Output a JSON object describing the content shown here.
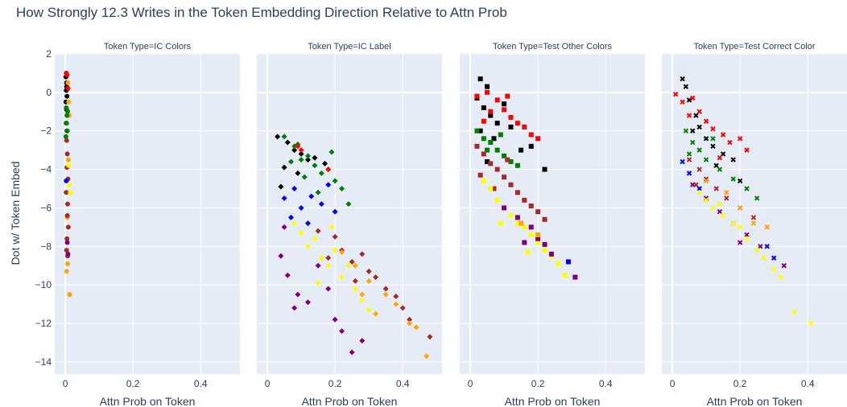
{
  "title": "How Strongly 12.3 Writes in the Token Embedding Direction Relative to Attn Prob",
  "ylabel": "Dot w/ Token Embed",
  "ylim": [
    -14.63,
    2.04
  ],
  "yticks": [
    2,
    0,
    {
      "value": -2,
      "label": "−2"
    },
    {
      "value": -4,
      "label": "−4"
    },
    {
      "value": -6,
      "label": "−6"
    },
    {
      "value": -8,
      "label": "−8"
    },
    {
      "value": -10,
      "label": "−10"
    },
    {
      "value": -12,
      "label": "−12"
    },
    {
      "value": -14,
      "label": "−14"
    }
  ],
  "chart_data": [
    {
      "type": "scatter",
      "title": "Token Type=IC Colors",
      "xlabel": "Attn Prob on Token",
      "xlim": [
        -0.031,
        0.516
      ],
      "xticks": [
        0,
        0.2,
        0.4
      ],
      "marker": "circle",
      "series": [
        {
          "color": "#000000",
          "x": [
            0.002,
            0.004,
            0.003,
            0.005,
            0.002,
            0.004,
            0.006,
            0.003,
            0.005,
            0.004
          ],
          "values": [
            0.8,
            0.5,
            0.1,
            -0.2,
            -0.5,
            -0.9,
            -1.2,
            -1.6,
            -2.0,
            0.3
          ]
        },
        {
          "color": "#ff0000",
          "x": [
            0.003,
            0.005,
            0.008
          ],
          "values": [
            1.0,
            0.9,
            0.2
          ]
        },
        {
          "color": "#ffa500",
          "x": [
            0.008,
            0.01,
            0.012,
            0.009,
            0.006,
            0.007,
            0.004,
            0.013
          ],
          "values": [
            0.5,
            -0.5,
            -1.2,
            -3.5,
            -6.5,
            -8.9,
            -9.3,
            -10.5
          ]
        },
        {
          "color": "#008000",
          "x": [
            0.003,
            0.005,
            0.004,
            0.006,
            0.002,
            0.007
          ],
          "values": [
            -0.8,
            -1.2,
            -1.6,
            -2.0,
            -2.3,
            -1.0
          ]
        },
        {
          "color": "#a52a2a",
          "x": [
            0.004,
            0.006,
            0.005,
            0.008,
            0.003,
            0.007,
            0.006,
            0.009,
            0.005,
            0.004,
            0.007
          ],
          "values": [
            -2.5,
            -3.2,
            -3.9,
            -4.5,
            -5.2,
            -5.8,
            -6.4,
            -7.0,
            -7.6,
            -8.2,
            -8.5
          ]
        },
        {
          "color": "#ffff00",
          "x": [
            0.012,
            0.015,
            0.01
          ],
          "values": [
            -4.8,
            -5.2,
            -3.8
          ]
        },
        {
          "color": "#0000ff",
          "x": [
            0.003
          ],
          "values": [
            -4.6
          ]
        },
        {
          "color": "#800080",
          "x": [
            0.006,
            0.008
          ],
          "values": [
            -7.8,
            -8.4
          ]
        }
      ]
    },
    {
      "type": "scatter",
      "title": "Token Type=IC Label",
      "xlabel": "Attn Prob on Token",
      "xlim": [
        -0.031,
        0.516
      ],
      "xticks": [
        0,
        0.2,
        0.4
      ],
      "marker": "diamond",
      "series": [
        {
          "color": "#000000",
          "x": [
            0.03,
            0.06,
            0.08,
            0.1,
            0.12,
            0.05,
            0.14,
            0.09,
            0.17,
            0.04
          ],
          "values": [
            -2.3,
            -2.6,
            -3.0,
            -3.2,
            -3.5,
            -3.9,
            -3.4,
            -4.2,
            -3.7,
            -4.9
          ]
        },
        {
          "color": "#008000",
          "x": [
            0.05,
            0.08,
            0.1,
            0.12,
            0.14,
            0.16,
            0.18,
            0.2,
            0.22,
            0.24,
            0.11,
            0.07,
            0.19,
            0.09,
            0.15
          ],
          "values": [
            -2.3,
            -2.8,
            -3.5,
            -3.3,
            -3.8,
            -4.2,
            -4.0,
            -4.6,
            -5.0,
            -5.8,
            -4.4,
            -3.6,
            -3.1,
            -2.7,
            -5.2
          ]
        },
        {
          "color": "#0000ff",
          "x": [
            0.05,
            0.08,
            0.1,
            0.13,
            0.16,
            0.18,
            0.07,
            0.12,
            0.2
          ],
          "values": [
            -5.5,
            -5.0,
            -6.0,
            -5.4,
            -5.8,
            -4.8,
            -6.5,
            -6.8,
            -6.2
          ]
        },
        {
          "color": "#ffff00",
          "x": [
            0.08,
            0.1,
            0.12,
            0.14,
            0.16,
            0.18,
            0.2,
            0.22,
            0.24,
            0.26,
            0.28,
            0.3,
            0.15,
            0.19
          ],
          "values": [
            -6.8,
            -7.3,
            -8.0,
            -7.6,
            -8.6,
            -9.0,
            -8.2,
            -9.6,
            -9.0,
            -10.2,
            -10.8,
            -11.3,
            -9.9,
            -7.0
          ]
        },
        {
          "color": "#a52a2a",
          "x": [
            0.15,
            0.2,
            0.22,
            0.25,
            0.28,
            0.3,
            0.32,
            0.35,
            0.38,
            0.4,
            0.42,
            0.48,
            0.26,
            0.18
          ],
          "values": [
            -7.2,
            -7.5,
            -8.2,
            -8.8,
            -8.4,
            -9.3,
            -9.6,
            -10.2,
            -10.6,
            -11.2,
            -11.8,
            -12.7,
            -9.8,
            -8.6
          ]
        },
        {
          "color": "#800080",
          "x": [
            0.04,
            0.06,
            0.09,
            0.12,
            0.15,
            0.2,
            0.22,
            0.25,
            0.28,
            0.05,
            0.18,
            0.08
          ],
          "values": [
            -8.5,
            -9.5,
            -10.5,
            -10.9,
            -9.0,
            -11.8,
            -12.4,
            -13.5,
            -12.9,
            -7.0,
            -10.2,
            -11.2
          ]
        },
        {
          "color": "#ffa500",
          "x": [
            0.22,
            0.26,
            0.3,
            0.35,
            0.38,
            0.42,
            0.44,
            0.47,
            0.32,
            0.28
          ],
          "values": [
            -8.3,
            -9.0,
            -9.8,
            -10.5,
            -11.0,
            -12.0,
            -12.2,
            -13.7,
            -11.5,
            -10.5
          ]
        },
        {
          "color": "#ff0000",
          "x": [
            0.1,
            0.09,
            0.18
          ],
          "values": [
            -3.0,
            -2.8,
            -4.0
          ]
        }
      ]
    },
    {
      "type": "scatter",
      "title": "Token Type=Test Other Colors",
      "xlabel": "Attn Prob on Token",
      "xlim": [
        -0.031,
        0.516
      ],
      "xticks": [
        0,
        0.2,
        0.4
      ],
      "marker": "square",
      "series": [
        {
          "color": "#000000",
          "x": [
            0.03,
            0.05,
            0.02,
            0.04,
            0.06,
            0.08,
            0.1,
            0.03,
            0.07,
            0.12,
            0.15,
            0.22,
            0.18,
            0.05
          ],
          "values": [
            0.7,
            0.3,
            -0.3,
            -0.8,
            -1.2,
            -1.6,
            -0.6,
            -2.0,
            -2.4,
            -1.8,
            -3.0,
            -4.0,
            -2.8,
            -3.6
          ]
        },
        {
          "color": "#ff0000",
          "x": [
            0.02,
            0.05,
            0.08,
            0.1,
            0.12,
            0.14,
            0.16,
            0.18,
            0.2,
            0.06,
            0.11,
            0.04
          ],
          "values": [
            -0.2,
            0.0,
            -0.4,
            -0.9,
            -1.3,
            -1.6,
            -1.8,
            -2.2,
            -2.4,
            -1.0,
            -0.2,
            -1.5
          ]
        },
        {
          "color": "#008000",
          "x": [
            0.02,
            0.04,
            0.06,
            0.08,
            0.1,
            0.12,
            0.14,
            0.05,
            0.09
          ],
          "values": [
            -2.0,
            -2.4,
            -2.6,
            -3.0,
            -3.3,
            -3.6,
            -3.8,
            -3.0,
            -2.2
          ]
        },
        {
          "color": "#a52a2a",
          "x": [
            0.02,
            0.04,
            0.06,
            0.08,
            0.1,
            0.12,
            0.14,
            0.16,
            0.18,
            0.2,
            0.22,
            0.03,
            0.07,
            0.11
          ],
          "values": [
            -2.8,
            -3.2,
            -3.7,
            -4.0,
            -4.4,
            -4.8,
            -5.2,
            -5.6,
            -5.9,
            -6.2,
            -6.6,
            -4.3,
            -5.0,
            -3.5
          ]
        },
        {
          "color": "#ffff00",
          "x": [
            0.04,
            0.06,
            0.08,
            0.1,
            0.12,
            0.14,
            0.16,
            0.18,
            0.2,
            0.22,
            0.24,
            0.26,
            0.28,
            0.09,
            0.17
          ],
          "values": [
            -4.6,
            -5.0,
            -5.6,
            -6.0,
            -6.4,
            -6.8,
            -7.0,
            -7.4,
            -7.8,
            -8.2,
            -8.5,
            -8.9,
            -9.5,
            -6.8,
            -8.3
          ]
        },
        {
          "color": "#800080",
          "x": [
            0.1,
            0.14,
            0.18,
            0.2,
            0.22,
            0.24,
            0.31,
            0.16
          ],
          "values": [
            -6.0,
            -6.5,
            -7.0,
            -7.6,
            -7.9,
            -8.4,
            -9.6,
            -7.8
          ]
        },
        {
          "color": "#0000ff",
          "x": [
            0.29
          ],
          "values": [
            -8.8
          ]
        },
        {
          "color": "#ffa500",
          "x": [
            0.15,
            0.2
          ],
          "values": [
            -6.8,
            -7.4
          ]
        }
      ]
    },
    {
      "type": "scatter",
      "title": "Token Type=Test Correct Color",
      "xlabel": "Attn Prob on Token",
      "xlim": [
        -0.031,
        0.516
      ],
      "xticks": [
        0,
        0.2,
        0.4
      ],
      "marker": "x",
      "series": [
        {
          "color": "#000000",
          "x": [
            0.03,
            0.04,
            0.05,
            0.07,
            0.08,
            0.1,
            0.12,
            0.15,
            0.18,
            0.2,
            0.06,
            0.13
          ],
          "values": [
            0.7,
            0.3,
            -0.4,
            -1.2,
            -1.8,
            -2.4,
            -2.8,
            -3.2,
            -3.5,
            -4.6,
            -2.0,
            -3.8
          ]
        },
        {
          "color": "#ff0000",
          "x": [
            0.01,
            0.03,
            0.06,
            0.08,
            0.1,
            0.12,
            0.15,
            0.17,
            0.2,
            0.22,
            0.05,
            0.14
          ],
          "values": [
            -0.1,
            -0.5,
            -0.3,
            -1.0,
            -1.5,
            -1.9,
            -2.2,
            -2.6,
            -2.4,
            -3.0,
            -1.2,
            -3.4
          ]
        },
        {
          "color": "#008000",
          "x": [
            0.04,
            0.06,
            0.08,
            0.1,
            0.14,
            0.18,
            0.22,
            0.25,
            0.05,
            0.12
          ],
          "values": [
            -2.0,
            -2.6,
            -3.0,
            -3.5,
            -4.0,
            -4.5,
            -5.0,
            -5.5,
            -3.2,
            -2.4
          ]
        },
        {
          "color": "#a52a2a",
          "x": [
            0.05,
            0.08,
            0.1,
            0.13,
            0.16,
            0.2,
            0.24,
            0.07
          ],
          "values": [
            -3.5,
            -4.0,
            -4.5,
            -5.0,
            -5.5,
            -6.0,
            -6.5,
            -4.8
          ]
        },
        {
          "color": "#0000ff",
          "x": [
            0.03,
            0.05,
            0.08,
            0.28,
            0.3
          ],
          "values": [
            -3.6,
            -4.2,
            -5.0,
            -8.0,
            -8.6
          ]
        },
        {
          "color": "#800080",
          "x": [
            0.06,
            0.1,
            0.14,
            0.18,
            0.22,
            0.26,
            0.33,
            0.2
          ],
          "values": [
            -4.8,
            -5.5,
            -6.2,
            -6.8,
            -7.4,
            -8.0,
            -9.0,
            -7.8
          ]
        },
        {
          "color": "#ffff00",
          "x": [
            0.08,
            0.1,
            0.12,
            0.15,
            0.18,
            0.2,
            0.22,
            0.25,
            0.27,
            0.3,
            0.32,
            0.36,
            0.41,
            0.14
          ],
          "values": [
            -5.2,
            -5.6,
            -6.0,
            -6.4,
            -6.8,
            -7.0,
            -7.6,
            -8.2,
            -8.6,
            -9.2,
            -9.6,
            -11.4,
            -12.0,
            -5.8
          ]
        },
        {
          "color": "#ffa500",
          "x": [
            0.1,
            0.16,
            0.2,
            0.24,
            0.28
          ],
          "values": [
            -4.6,
            -5.2,
            -6.0,
            -6.8,
            -7.0
          ]
        }
      ]
    }
  ]
}
